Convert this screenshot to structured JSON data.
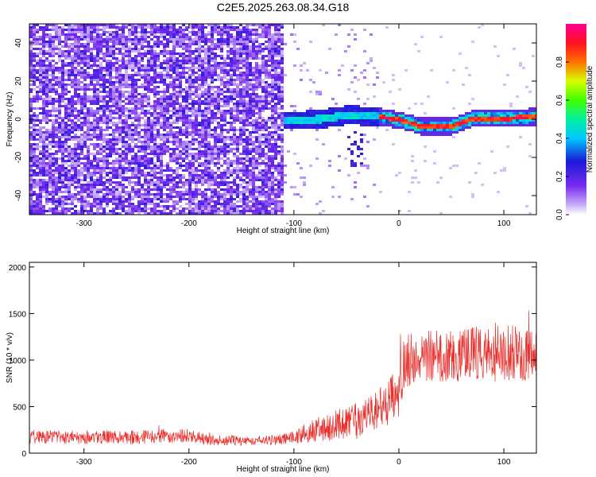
{
  "figure": {
    "title": "C2E5.2025.263.08.34.G18"
  },
  "chart_data": [
    {
      "type": "heatmap",
      "xlabel": "Height of straight line (km)",
      "ylabel": "Frequency (Hz)",
      "xlim": [
        -352,
        131
      ],
      "ylim": [
        -50,
        50
      ],
      "xticks": [
        -300,
        -200,
        -100,
        0,
        100
      ],
      "yticks": [
        -40,
        -20,
        0,
        20,
        40
      ],
      "colorbar": {
        "label": "Normalized spectral amplitude",
        "range": [
          0,
          1
        ],
        "ticks": [
          0.0,
          0.2,
          0.4,
          0.6,
          0.8
        ],
        "tick_labels": [
          "0.0",
          "0.2",
          "0.4",
          "0.6",
          "0.8"
        ],
        "colormap": "white-purple-blue-cyan-green-yellow-red-magenta"
      },
      "regions": [
        {
          "x_range": [
            -352,
            -110
          ],
          "description": "broadband noise",
          "amplitude_range": [
            0.0,
            0.3
          ]
        },
        {
          "x_range": [
            -110,
            -20
          ],
          "description": "signal band",
          "freq_center": 0,
          "freq_width": 8,
          "amplitude_range": [
            0.3,
            0.5
          ]
        },
        {
          "x_range": [
            -20,
            131
          ],
          "description": "narrow carrier",
          "freq_center": 0,
          "freq_width": 3,
          "amplitude_range": [
            0.7,
            1.0
          ]
        }
      ],
      "carrier_track": {
        "x": [
          -110,
          -90,
          -70,
          -50,
          -30,
          -20,
          0,
          20,
          50,
          70,
          100,
          131
        ],
        "freq": [
          0,
          0,
          1,
          3,
          2,
          2,
          0,
          -3,
          -3,
          1,
          1,
          2
        ]
      }
    },
    {
      "type": "line",
      "xlabel": "Height of straight line (km)",
      "ylabel": "SNR (10 * v/v)",
      "xlim": [
        -352,
        131
      ],
      "ylim": [
        0,
        2050
      ],
      "xticks": [
        -300,
        -200,
        -100,
        0,
        100
      ],
      "yticks": [
        0,
        500,
        1000,
        1500,
        2000
      ],
      "color": "#e8302c",
      "series": [
        {
          "x": [
            -352,
            -300,
            -250,
            -200,
            -180,
            -150,
            -120,
            -100,
            -80,
            -60,
            -40,
            -20,
            -10,
            0,
            5,
            20,
            40,
            60,
            80,
            100,
            120,
            131
          ],
          "mean": [
            180,
            175,
            170,
            190,
            140,
            135,
            140,
            170,
            250,
            300,
            350,
            450,
            550,
            650,
            1000,
            1050,
            1050,
            1050,
            1080,
            1100,
            1050,
            1050
          ],
          "spread": [
            150,
            150,
            150,
            150,
            110,
            110,
            110,
            150,
            250,
            320,
            400,
            450,
            500,
            550,
            600,
            550,
            600,
            600,
            650,
            650,
            550,
            550
          ]
        }
      ]
    }
  ]
}
